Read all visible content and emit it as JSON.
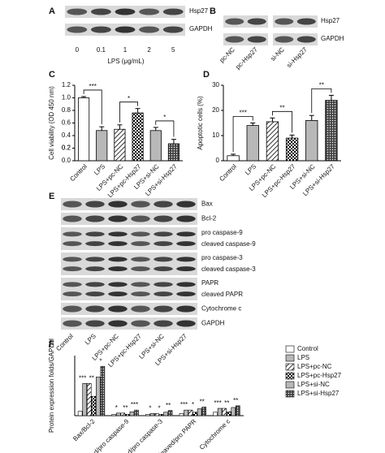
{
  "panel_a": {
    "letter": "A",
    "rows": [
      "Hsp27",
      "GAPDH"
    ],
    "lanes": [
      "0",
      "0.1",
      "1",
      "2",
      "5"
    ],
    "xlabel": "LPS (μg/mL)"
  },
  "panel_b": {
    "letter": "B",
    "rows": [
      "Hsp27",
      "GAPDH"
    ],
    "lanes": [
      "pc-NC",
      "pc-Hsp27",
      "si-NC",
      "si-Hsp27"
    ]
  },
  "panel_c": {
    "letter": "C"
  },
  "panel_d": {
    "letter": "D"
  },
  "panel_f": {
    "letter": "F"
  },
  "panel_e": {
    "letter": "E",
    "rows": [
      [
        "Bax"
      ],
      [
        "Bcl-2"
      ],
      [
        "pro caspase-9",
        "cleaved caspase-9"
      ],
      [
        "pro caspase-3",
        "cleaved caspase-3"
      ],
      [
        "PAPR",
        "cleaved PAPR"
      ],
      [
        "Cytochrome c"
      ],
      [
        "GAPDH"
      ]
    ],
    "lanes": [
      "Control",
      "LPS",
      "LPS+pc-NC",
      "LPS+pc-Hsp27",
      "LPS+si-NC",
      "LPS+si-Hsp27"
    ]
  },
  "chart_data": [
    {
      "type": "bar",
      "ylabel": "Cell viability (OD 450 nm)",
      "categories": [
        "Control",
        "LPS",
        "LPS+pc-NC",
        "LPS+pc-Hsp27",
        "LPS+si-NC",
        "LPS+si-Hsp27"
      ],
      "values": [
        1.0,
        0.48,
        0.5,
        0.76,
        0.48,
        0.27
      ],
      "errors": [
        0.02,
        0.06,
        0.07,
        0.07,
        0.05,
        0.07
      ],
      "patterns": [
        "white",
        "gray",
        "hatch",
        "check",
        "gray",
        "dots"
      ],
      "ylim": [
        0,
        1.2
      ],
      "yticks": [
        {
          "value": 0,
          "label": "0.0"
        },
        0.2,
        0.4,
        0.6,
        0.8,
        {
          "value": 1,
          "label": "1.0"
        },
        0.2,
        {
          "value": 1.2,
          "label": "1.2"
        }
      ],
      "annotations": [
        {
          "text": "***",
          "between": [
            0,
            1
          ]
        },
        {
          "text": "*",
          "between": [
            2,
            3
          ]
        },
        {
          "text": "*",
          "between": [
            4,
            5
          ]
        }
      ]
    },
    {
      "type": "bar",
      "ylabel": "Apoptotic cells (%)",
      "categories": [
        "Control",
        "LPS",
        "LPS+pc-NC",
        "LPS+pc-Hsp27",
        "LPS+si-NC",
        "LPS+si-Hsp27"
      ],
      "values": [
        2,
        14,
        15.5,
        9,
        16,
        24
      ],
      "errors": [
        0.6,
        1,
        1.5,
        1.2,
        2,
        2
      ],
      "patterns": [
        "white",
        "gray",
        "hatch",
        "check",
        "gray",
        "dots"
      ],
      "ylim": [
        0,
        30
      ],
      "yticks": [
        0,
        10,
        20,
        30
      ],
      "annotations": [
        {
          "text": "***",
          "between": [
            0,
            1
          ]
        },
        {
          "text": "**",
          "between": [
            2,
            3
          ]
        },
        {
          "text": "**",
          "between": [
            4,
            5
          ]
        }
      ]
    },
    {
      "type": "grouped_bar",
      "ylabel": "Protein expression folds/GAPDH",
      "categories": [
        "Bax/Bcl-2",
        "cleaved/pro caspase-9",
        "cleaved/pro caspase-3",
        "cleaved/pro PAPR",
        "Cytochrome c"
      ],
      "ylim": [
        0,
        14
      ],
      "series": [
        {
          "name": "Control",
          "pattern": "white",
          "values": [
            1,
            0.3,
            0.3,
            0.5,
            0.8
          ]
        },
        {
          "name": "LPS",
          "pattern": "gray",
          "values": [
            7.5,
            0.6,
            0.5,
            1.3,
            1.7
          ]
        },
        {
          "name": "LPS+pc-NC",
          "pattern": "hatch",
          "values": [
            7.5,
            0.6,
            0.5,
            1.3,
            1.7
          ]
        },
        {
          "name": "LPS+pc-Hsp27",
          "pattern": "check",
          "values": [
            4.5,
            0.3,
            0.3,
            0.8,
            0.9
          ]
        },
        {
          "name": "LPS+si-NC",
          "pattern": "gray",
          "values": [
            9,
            0.9,
            0.8,
            1.6,
            1.9
          ]
        },
        {
          "name": "LPS+si-Hsp27",
          "pattern": "dots",
          "values": [
            11.5,
            1.3,
            1.2,
            2.0,
            2.3
          ]
        }
      ],
      "annotations": [
        [
          "***",
          "**",
          "*"
        ],
        [
          "*",
          "**",
          "***"
        ],
        [
          "*",
          "*",
          "**"
        ],
        [
          "***",
          "*",
          "**"
        ],
        [
          "***",
          "**",
          "**"
        ]
      ]
    }
  ]
}
